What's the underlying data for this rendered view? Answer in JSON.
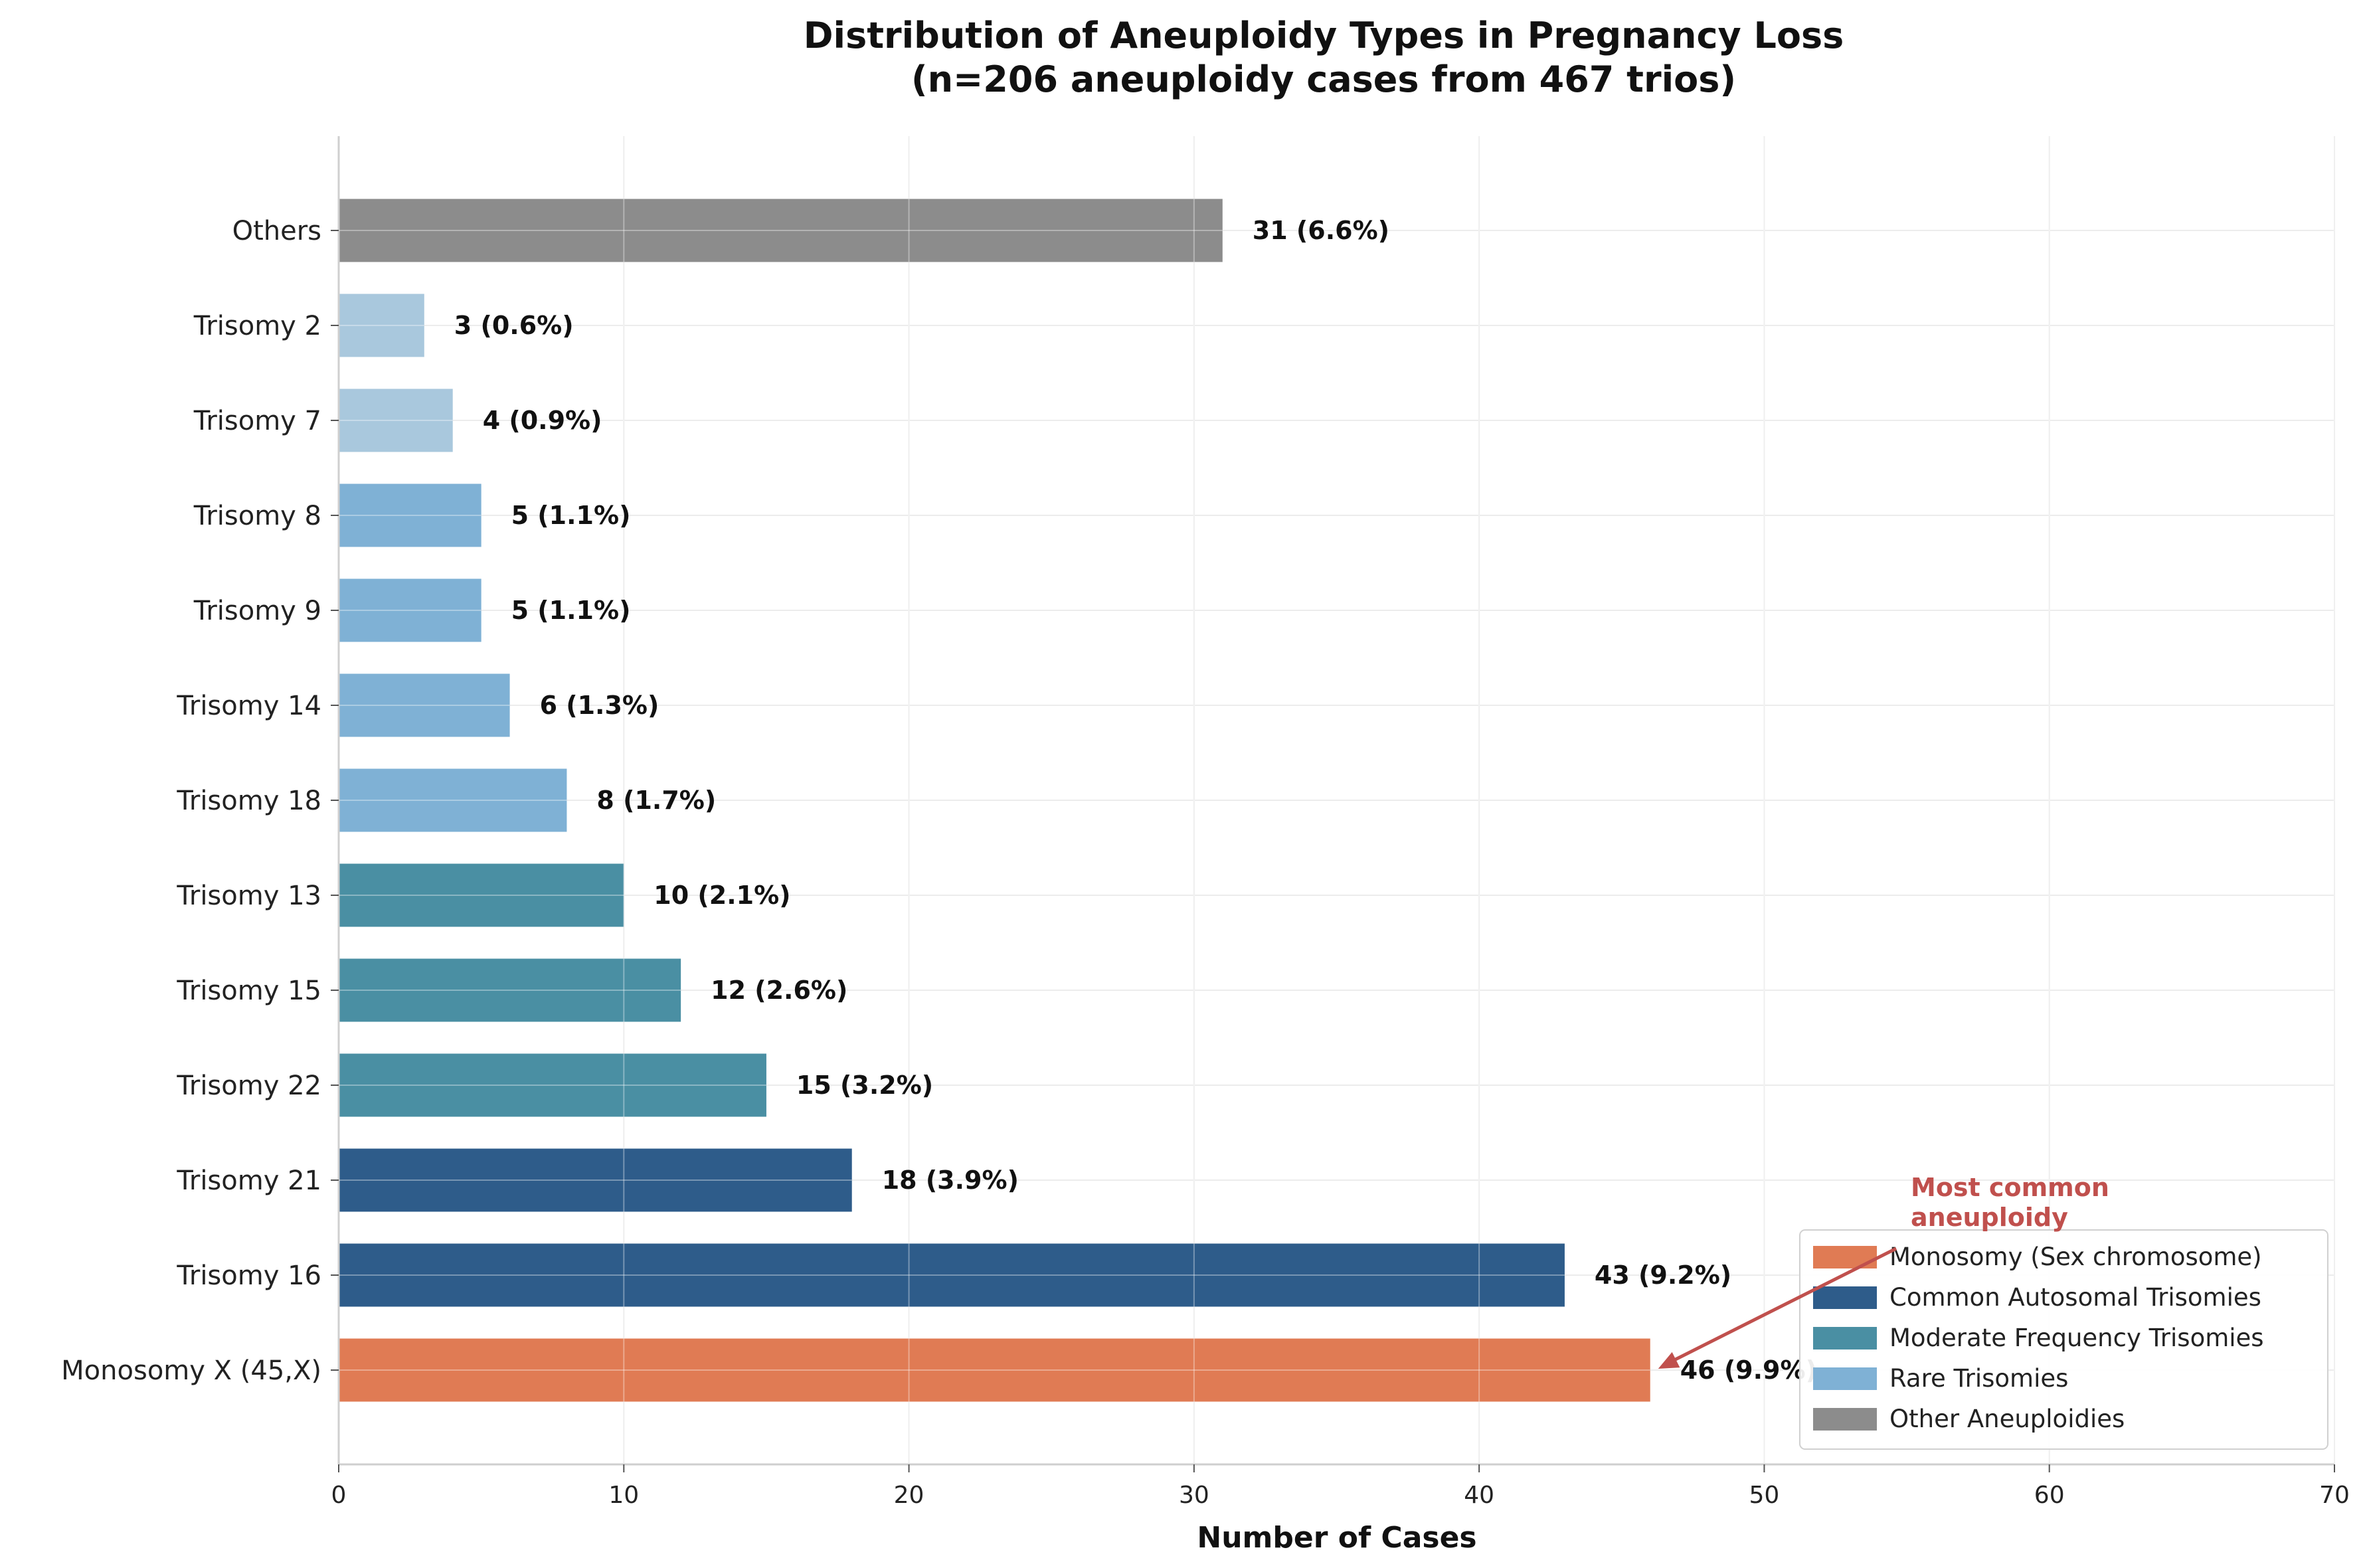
{
  "chart_data": {
    "type": "bar",
    "orientation": "horizontal",
    "title": [
      "Distribution of Aneuploidy Types in Pregnancy Loss",
      "(n=206 aneuploidy cases from 467 trios)"
    ],
    "xlabel": "Number of Cases",
    "ylabel": "",
    "xlim": [
      0,
      70
    ],
    "xticks": [
      "0",
      "10",
      "20",
      "30",
      "40",
      "50",
      "60",
      "70"
    ],
    "grid": true,
    "legend_position": "lower-right",
    "categories": [
      "Monosomy X (45,X)",
      "Trisomy 16",
      "Trisomy 21",
      "Trisomy 22",
      "Trisomy 15",
      "Trisomy 13",
      "Trisomy 18",
      "Trisomy 14",
      "Trisomy 9",
      "Trisomy 8",
      "Trisomy 7",
      "Trisomy 2",
      "Others"
    ],
    "values": [
      46,
      43,
      18,
      15,
      12,
      10,
      8,
      6,
      5,
      5,
      4,
      3,
      31
    ],
    "labels": [
      "46 (9.9%)",
      "43 (9.2%)",
      "18 (3.9%)",
      "15 (3.2%)",
      "12 (2.6%)",
      "10 (2.1%)",
      "8 (1.7%)",
      "6 (1.3%)",
      "5 (1.1%)",
      "5 (1.1%)",
      "4 (0.9%)",
      "3 (0.6%)",
      "31 (6.6%)"
    ],
    "groups": [
      "mono",
      "common",
      "common",
      "moderate",
      "moderate",
      "moderate",
      "rare",
      "rare",
      "rare",
      "rare",
      "rare-light",
      "rare-light",
      "other"
    ],
    "group_colors": {
      "mono": "#E07B54",
      "common": "#2E5C8A",
      "moderate": "#4A8FA3",
      "rare": "#7FB1D5",
      "rare-light": "#A9C8DD",
      "other": "#8C8C8C"
    },
    "legend": [
      {
        "label": "Monosomy (Sex chromosome)",
        "group": "mono"
      },
      {
        "label": "Common Autosomal Trisomies",
        "group": "common"
      },
      {
        "label": "Moderate Frequency Trisomies",
        "group": "moderate"
      },
      {
        "label": "Rare Trisomies",
        "group": "rare"
      },
      {
        "label": "Other Aneuploidies",
        "group": "other"
      }
    ],
    "annotation": {
      "text": [
        "Most common",
        "aneuploidy"
      ],
      "target_category": "Monosomy X (45,X)",
      "color": "#C0504D"
    }
  }
}
